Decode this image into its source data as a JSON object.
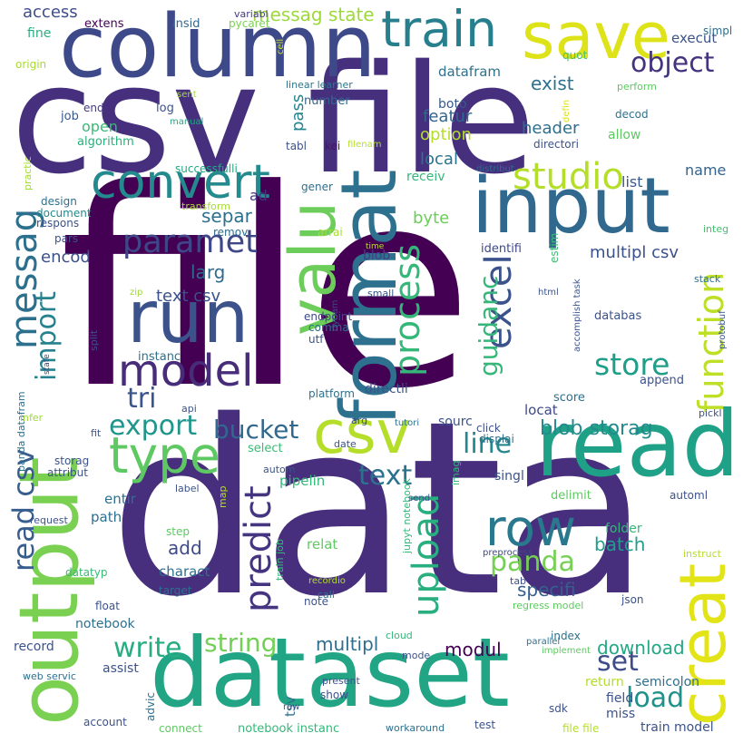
{
  "words": [
    {
      "text": "file",
      "color": "#440154"
    },
    {
      "text": "data",
      "color": "#472f7d"
    },
    {
      "text": "csv file",
      "color": "#46307e"
    },
    {
      "text": "column",
      "color": "#3e4989"
    },
    {
      "text": "save",
      "color": "#dde318"
    },
    {
      "text": "dataset",
      "color": "#21a585"
    },
    {
      "text": "output",
      "color": "#7ad151"
    },
    {
      "text": "read",
      "color": "#1fa187"
    },
    {
      "text": "format",
      "color": "#2d718e"
    },
    {
      "text": "input",
      "color": "#31688e"
    },
    {
      "text": "run",
      "color": "#3b528b"
    },
    {
      "text": "creat",
      "color": "#e2e418"
    },
    {
      "text": "train",
      "color": "#277f8e"
    },
    {
      "text": "valu",
      "color": "#6ccd5a"
    },
    {
      "text": "csv",
      "color": "#b5de2b"
    },
    {
      "text": "model",
      "color": "#472c7a"
    },
    {
      "text": "convert",
      "color": "#238a8d"
    },
    {
      "text": "row",
      "color": "#2a788e"
    },
    {
      "text": "type",
      "color": "#5ec962"
    },
    {
      "text": "messag",
      "color": "#2d708e"
    },
    {
      "text": "excel",
      "color": "#3b528b"
    },
    {
      "text": "function",
      "color": "#bddf26"
    },
    {
      "text": "paramet",
      "color": "#3f4788"
    },
    {
      "text": "process",
      "color": "#35b779"
    },
    {
      "text": "studio",
      "color": "#b5de2b"
    },
    {
      "text": "upload",
      "color": "#29af7f"
    },
    {
      "text": "predict",
      "color": "#453581"
    },
    {
      "text": "export",
      "color": "#1f968b"
    },
    {
      "text": "bucket",
      "color": "#31688e"
    },
    {
      "text": "store",
      "color": "#1f9e89"
    },
    {
      "text": "import",
      "color": "#26828e"
    },
    {
      "text": "line",
      "color": "#24878e"
    },
    {
      "text": "text",
      "color": "#2c728e"
    },
    {
      "text": "panda",
      "color": "#75d054"
    },
    {
      "text": "tri",
      "color": "#3a548c"
    },
    {
      "text": "read csv",
      "color": "#365d8d"
    },
    {
      "text": "object",
      "color": "#46337f"
    },
    {
      "text": "write",
      "color": "#27ad81"
    },
    {
      "text": "string",
      "color": "#73d056"
    },
    {
      "text": "load",
      "color": "#21918c"
    },
    {
      "text": "set",
      "color": "#3e4c8a"
    },
    {
      "text": "guidanc",
      "color": "#35b779"
    },
    {
      "text": "messag state",
      "color": "#9dd93b"
    },
    {
      "text": "blob storag",
      "color": "#238a8d"
    },
    {
      "text": "exist",
      "color": "#2c728e"
    },
    {
      "text": "access",
      "color": "#3d4e8a"
    },
    {
      "text": "separ",
      "color": "#2d708e"
    },
    {
      "text": "multipl csv",
      "color": "#3b518b"
    },
    {
      "text": "text csv",
      "color": "#3b528b"
    },
    {
      "text": "modul",
      "color": "#440154"
    },
    {
      "text": "multipl",
      "color": "#2e6e8e"
    },
    {
      "text": "specifi",
      "color": "#355f8d"
    },
    {
      "text": "add",
      "color": "#3e4a89"
    },
    {
      "text": "batch",
      "color": "#1f9e89"
    },
    {
      "text": "download",
      "color": "#22a884"
    },
    {
      "text": "larg",
      "color": "#2f6b8e"
    },
    {
      "text": "encod",
      "color": "#3c508b"
    },
    {
      "text": "header",
      "color": "#2e6f8e"
    },
    {
      "text": "option",
      "color": "#b5de2b"
    },
    {
      "text": "local",
      "color": "#2b748e"
    },
    {
      "text": "featur",
      "color": "#31668e"
    },
    {
      "text": "pass",
      "color": "#25848e"
    },
    {
      "text": "open",
      "color": "#3aba76"
    },
    {
      "text": "name",
      "color": "#33628d"
    },
    {
      "text": "list",
      "color": "#38598c"
    },
    {
      "text": "byte",
      "color": "#6ccd5a"
    },
    {
      "text": "execut",
      "color": "#3b528b"
    },
    {
      "text": "datafram",
      "color": "#2c728e"
    },
    {
      "text": "fine",
      "color": "#28ae80"
    },
    {
      "text": "extens",
      "color": "#440154"
    },
    {
      "text": "insid",
      "color": "#31688e"
    },
    {
      "text": "variabl",
      "color": "#443a83"
    },
    {
      "text": "pycaret",
      "color": "#7ad151"
    },
    {
      "text": "cell",
      "color": "#c8e020"
    },
    {
      "text": "simpl",
      "color": "#2d708e"
    },
    {
      "text": "quot",
      "color": "#44bf70"
    },
    {
      "text": "origin",
      "color": "#a8db34"
    },
    {
      "text": "job",
      "color": "#38588c"
    },
    {
      "text": "end",
      "color": "#443983"
    },
    {
      "text": "log",
      "color": "#3b528b"
    },
    {
      "text": "sent",
      "color": "#9fda3a"
    },
    {
      "text": "manual",
      "color": "#21a685"
    },
    {
      "text": "algorithm",
      "color": "#29af7f"
    },
    {
      "text": "linear learner",
      "color": "#2a768e"
    },
    {
      "text": "number",
      "color": "#32648e"
    },
    {
      "text": "boto",
      "color": "#375a8c"
    },
    {
      "text": "perform",
      "color": "#5ec962"
    },
    {
      "text": "defin",
      "color": "#dde318"
    },
    {
      "text": "decod",
      "color": "#2c718e"
    },
    {
      "text": "allow",
      "color": "#5ec962"
    },
    {
      "text": "directori",
      "color": "#3b528b"
    },
    {
      "text": "tabl",
      "color": "#3b528b"
    },
    {
      "text": "kei",
      "color": "#471365"
    },
    {
      "text": "filenam",
      "color": "#b5de2b"
    },
    {
      "text": "receiv",
      "color": "#35b779"
    },
    {
      "text": "distribut",
      "color": "#31688e"
    },
    {
      "text": "successfulli",
      "color": "#22a884"
    },
    {
      "text": "practic",
      "color": "#a2da37"
    },
    {
      "text": "ad",
      "color": "#46337f"
    },
    {
      "text": "gener",
      "color": "#2e6f8e"
    },
    {
      "text": "transform",
      "color": "#a5db36"
    },
    {
      "text": "design",
      "color": "#2d718e"
    },
    {
      "text": "document",
      "color": "#238a8d"
    },
    {
      "text": "respons",
      "color": "#3b528b"
    },
    {
      "text": "arrai",
      "color": "#a8db34"
    },
    {
      "text": "integ",
      "color": "#44bf70"
    },
    {
      "text": "remov",
      "color": "#2e6e8e"
    },
    {
      "text": "pars",
      "color": "#3b518b"
    },
    {
      "text": "time",
      "color": "#bddf26"
    },
    {
      "text": "identifi",
      "color": "#3e4989"
    },
    {
      "text": "estim",
      "color": "#3ebc73"
    },
    {
      "text": "blob",
      "color": "#433e85"
    },
    {
      "text": "stack",
      "color": "#2d708e"
    },
    {
      "text": "zip",
      "color": "#a0da39"
    },
    {
      "text": "small",
      "color": "#3b528b"
    },
    {
      "text": "dynam",
      "color": "#3e4989"
    },
    {
      "text": "html",
      "color": "#3b528b"
    },
    {
      "text": "accomplish task",
      "color": "#3b528b"
    },
    {
      "text": "protobuf",
      "color": "#38588c"
    },
    {
      "text": "databas",
      "color": "#3b528b"
    },
    {
      "text": "endpoint",
      "color": "#3e4989"
    },
    {
      "text": "comma",
      "color": "#2d708e"
    },
    {
      "text": "utf",
      "color": "#3b528b"
    },
    {
      "text": "instanc",
      "color": "#2c728e"
    },
    {
      "text": "panda datafram",
      "color": "#2d708e"
    },
    {
      "text": "split",
      "color": "#3b528b"
    },
    {
      "text": "state",
      "color": "#3e4989"
    },
    {
      "text": "platform",
      "color": "#2d708e"
    },
    {
      "text": "directli",
      "color": "#3b528b"
    },
    {
      "text": "append",
      "color": "#3b528b"
    },
    {
      "text": "score",
      "color": "#2d708e"
    },
    {
      "text": "api",
      "color": "#3b528b"
    },
    {
      "text": "arg",
      "color": "#3e4989"
    },
    {
      "text": "tutori",
      "color": "#2d708e"
    },
    {
      "text": "sourc",
      "color": "#3b528b"
    },
    {
      "text": "locat",
      "color": "#3e4989"
    },
    {
      "text": "click",
      "color": "#3b528b"
    },
    {
      "text": "pickl",
      "color": "#3b528b"
    },
    {
      "text": "infer",
      "color": "#a0da39"
    },
    {
      "text": "fit",
      "color": "#3b528b"
    },
    {
      "text": "select",
      "color": "#3aba76"
    },
    {
      "text": "date",
      "color": "#3b528b"
    },
    {
      "text": "displai",
      "color": "#2d708e"
    },
    {
      "text": "storag",
      "color": "#3b528b"
    },
    {
      "text": "attribut",
      "color": "#3b528b"
    },
    {
      "text": "autom",
      "color": "#3b528b"
    },
    {
      "text": "pipelin",
      "color": "#35b779"
    },
    {
      "text": "imag",
      "color": "#35b779"
    },
    {
      "text": "singl",
      "color": "#3b528b"
    },
    {
      "text": "entir",
      "color": "#2d708e"
    },
    {
      "text": "label",
      "color": "#3b528b"
    },
    {
      "text": "jupyt notebook",
      "color": "#35b779"
    },
    {
      "text": "send",
      "color": "#3b528b"
    },
    {
      "text": "delimit",
      "color": "#5ec962"
    },
    {
      "text": "automl",
      "color": "#3b528b"
    },
    {
      "text": "request",
      "color": "#3b528b"
    },
    {
      "text": "map",
      "color": "#b5de2b"
    },
    {
      "text": "train job",
      "color": "#3aba76"
    },
    {
      "text": "path",
      "color": "#2d708e"
    },
    {
      "text": "step",
      "color": "#5ec962"
    },
    {
      "text": "folder",
      "color": "#35b779"
    },
    {
      "text": "relat",
      "color": "#5ec962"
    },
    {
      "text": "preprocess",
      "color": "#3e4989"
    },
    {
      "text": "instruct",
      "color": "#b5de2b"
    },
    {
      "text": "datatyp",
      "color": "#3aba76"
    },
    {
      "text": "charact",
      "color": "#2d708e"
    },
    {
      "text": "recordio",
      "color": "#b5de2b"
    },
    {
      "text": "tab",
      "color": "#3b528b"
    },
    {
      "text": "call",
      "color": "#2d708e"
    },
    {
      "text": "target",
      "color": "#2d708e"
    },
    {
      "text": "note",
      "color": "#3b528b"
    },
    {
      "text": "regress model",
      "color": "#5ec962"
    },
    {
      "text": "float",
      "color": "#3b528b"
    },
    {
      "text": "json",
      "color": "#3b528b"
    },
    {
      "text": "notebook",
      "color": "#2d708e"
    },
    {
      "text": "cloud",
      "color": "#35b779"
    },
    {
      "text": "index",
      "color": "#2d708e"
    },
    {
      "text": "record",
      "color": "#3b528b"
    },
    {
      "text": "mode",
      "color": "#3b528b"
    },
    {
      "text": "parallel",
      "color": "#2d708e"
    },
    {
      "text": "implement",
      "color": "#5ec962"
    },
    {
      "text": "assist",
      "color": "#3b528b"
    },
    {
      "text": "web servic",
      "color": "#2d708e"
    },
    {
      "text": "present",
      "color": "#3b528b"
    },
    {
      "text": "return",
      "color": "#b5de2b"
    },
    {
      "text": "semicolon",
      "color": "#2d708e"
    },
    {
      "text": "tsv",
      "color": "#2d708e"
    },
    {
      "text": "field",
      "color": "#3b528b"
    },
    {
      "text": "show",
      "color": "#3b528b"
    },
    {
      "text": "raw",
      "color": "#3b528b"
    },
    {
      "text": "sdk",
      "color": "#3b528b"
    },
    {
      "text": "miss",
      "color": "#3b528b"
    },
    {
      "text": "advic",
      "color": "#2d708e"
    },
    {
      "text": "account",
      "color": "#3b528b"
    },
    {
      "text": "connect",
      "color": "#5ec962"
    },
    {
      "text": "notebook instanc",
      "color": "#35b779"
    },
    {
      "text": "workaround",
      "color": "#2d708e"
    },
    {
      "text": "test",
      "color": "#3b528b"
    },
    {
      "text": "file file",
      "color": "#b5de2b"
    },
    {
      "text": "train model",
      "color": "#3b528b"
    }
  ]
}
